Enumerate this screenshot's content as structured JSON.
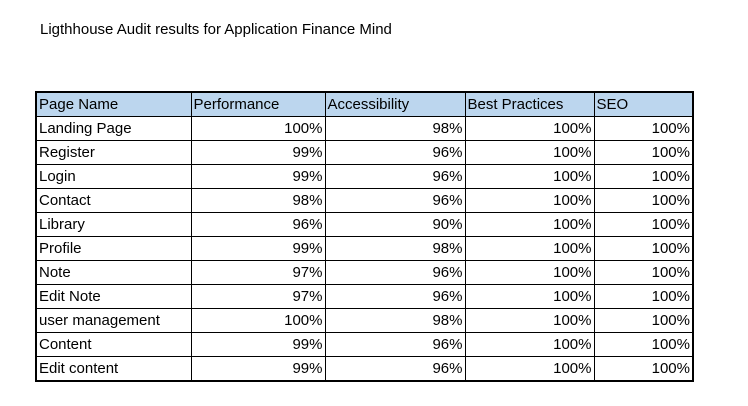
{
  "title": "Ligthhouse Audit results for Application Finance Mind",
  "table": {
    "headers": [
      "Page Name",
      "Performance",
      "Accessibility",
      "Best Practices",
      "SEO"
    ],
    "rows": [
      [
        "Landing Page",
        "100%",
        "98%",
        "100%",
        "100%"
      ],
      [
        "Register",
        "99%",
        "96%",
        "100%",
        "100%"
      ],
      [
        "Login",
        "99%",
        "96%",
        "100%",
        "100%"
      ],
      [
        "Contact",
        "98%",
        "96%",
        "100%",
        "100%"
      ],
      [
        "Library",
        "96%",
        "90%",
        "100%",
        "100%"
      ],
      [
        "Profile",
        "99%",
        "98%",
        "100%",
        "100%"
      ],
      [
        "Note",
        "97%",
        "96%",
        "100%",
        "100%"
      ],
      [
        "Edit Note",
        "97%",
        "96%",
        "100%",
        "100%"
      ],
      [
        "user management",
        "100%",
        "98%",
        "100%",
        "100%"
      ],
      [
        "Content",
        "99%",
        "96%",
        "100%",
        "100%"
      ],
      [
        "Edit content",
        "99%",
        "96%",
        "100%",
        "100%"
      ]
    ]
  },
  "colors": {
    "header_fill": "#bcd6ee",
    "border": "#000000",
    "text": "#000000"
  }
}
